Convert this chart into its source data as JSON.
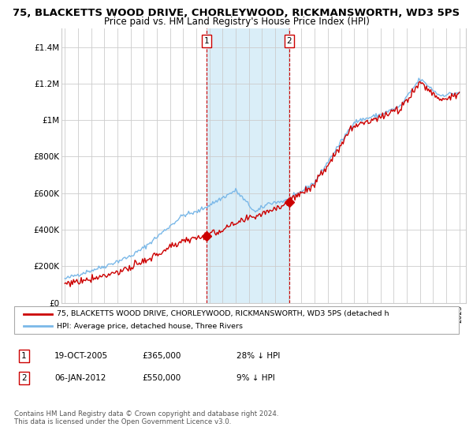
{
  "title": "75, BLACKETTS WOOD DRIVE, CHORLEYWOOD, RICKMANSWORTH, WD3 5PS",
  "subtitle": "Price paid vs. HM Land Registry's House Price Index (HPI)",
  "legend_line1": "75, BLACKETTS WOOD DRIVE, CHORLEYWOOD, RICKMANSWORTH, WD3 5PS (detached h",
  "legend_line2": "HPI: Average price, detached house, Three Rivers",
  "annotation1_date": "19-OCT-2005",
  "annotation1_price": "£365,000",
  "annotation1_hpi": "28% ↓ HPI",
  "annotation2_date": "06-JAN-2012",
  "annotation2_price": "£550,000",
  "annotation2_hpi": "9% ↓ HPI",
  "footnote": "Contains HM Land Registry data © Crown copyright and database right 2024.\nThis data is licensed under the Open Government Licence v3.0.",
  "xmin": 1994.75,
  "xmax": 2025.5,
  "ymin": 0,
  "ymax": 1500000,
  "yticks": [
    0,
    200000,
    400000,
    600000,
    800000,
    1000000,
    1200000,
    1400000
  ],
  "ytick_labels": [
    "£0",
    "£200K",
    "£400K",
    "£600K",
    "£800K",
    "£1M",
    "£1.2M",
    "£1.4M"
  ],
  "hpi_color": "#7ab8e8",
  "price_color": "#cc0000",
  "shading_color": "#daeef8",
  "grid_color": "#cccccc",
  "background_color": "#ffffff",
  "purchase1_x": 2005.8,
  "purchase1_y": 365000,
  "purchase2_x": 2012.05,
  "purchase2_y": 550000,
  "title_fontsize": 9.5,
  "subtitle_fontsize": 8.5
}
